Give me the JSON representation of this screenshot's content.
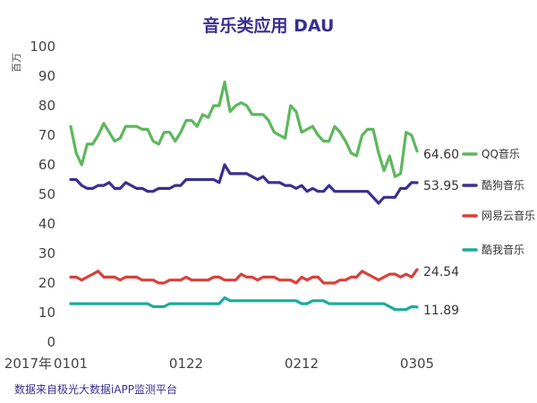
{
  "chart_data": {
    "type": "line",
    "title": "音乐类应用 DAU",
    "ylabel": "百万",
    "ylim": [
      0,
      100
    ],
    "yticks": [
      0,
      10,
      20,
      30,
      40,
      50,
      60,
      70,
      80,
      90,
      100
    ],
    "x_start_prefix": "2017年",
    "x_tick_labels": [
      "0101",
      "0122",
      "0212",
      "0305"
    ],
    "x": [
      "0101",
      "0102",
      "0103",
      "0104",
      "0105",
      "0106",
      "0107",
      "0108",
      "0109",
      "0110",
      "0111",
      "0112",
      "0113",
      "0114",
      "0115",
      "0116",
      "0117",
      "0118",
      "0119",
      "0120",
      "0121",
      "0122",
      "0123",
      "0124",
      "0125",
      "0126",
      "0127",
      "0128",
      "0129",
      "0130",
      "0131",
      "0201",
      "0202",
      "0203",
      "0204",
      "0205",
      "0206",
      "0207",
      "0208",
      "0209",
      "0210",
      "0211",
      "0212",
      "0213",
      "0214",
      "0215",
      "0216",
      "0217",
      "0218",
      "0219",
      "0220",
      "0221",
      "0222",
      "0223",
      "0224",
      "0225",
      "0226",
      "0227",
      "0228",
      "0301",
      "0302",
      "0303",
      "0304",
      "0305"
    ],
    "series": [
      {
        "name": "QQ音乐",
        "color": "#5cb85c",
        "end_label": "64.60",
        "values": [
          73,
          64,
          60,
          67,
          67,
          70,
          74,
          71,
          68,
          69,
          73,
          73,
          73,
          72,
          72,
          68,
          67,
          71,
          71,
          68,
          71,
          75,
          75,
          73,
          77,
          76,
          80,
          80,
          88,
          78,
          80,
          81,
          80,
          77,
          77,
          77,
          75,
          71,
          70,
          69,
          80,
          78,
          71,
          72,
          73,
          70,
          68,
          68,
          73,
          71,
          68,
          64,
          63,
          70,
          72,
          72,
          64,
          58,
          63,
          56,
          57,
          71,
          70,
          64.6
        ]
      },
      {
        "name": "酷狗音乐",
        "color": "#3a2f8f",
        "end_label": "53.95",
        "values": [
          55,
          55,
          53,
          52,
          52,
          53,
          53,
          54,
          52,
          52,
          54,
          53,
          52,
          52,
          51,
          51,
          52,
          52,
          52,
          53,
          53,
          55,
          55,
          55,
          55,
          55,
          55,
          54,
          60,
          57,
          57,
          57,
          57,
          56,
          55,
          56,
          54,
          54,
          54,
          53,
          53,
          52,
          53,
          51,
          52,
          51,
          51,
          53,
          51,
          51,
          51,
          51,
          51,
          51,
          51,
          49,
          47,
          49,
          49,
          49,
          52,
          52,
          54,
          53.95
        ]
      },
      {
        "name": "网易云音乐",
        "color": "#d9403a",
        "end_label": "24.54",
        "values": [
          22,
          22,
          21,
          22,
          23,
          24,
          22,
          22,
          22,
          21,
          22,
          22,
          22,
          21,
          21,
          21,
          20,
          20,
          21,
          21,
          21,
          22,
          21,
          21,
          21,
          21,
          22,
          22,
          21,
          21,
          21,
          23,
          22,
          22,
          21,
          22,
          22,
          22,
          21,
          21,
          21,
          20,
          22,
          21,
          22,
          22,
          20,
          20,
          20,
          21,
          21,
          22,
          22,
          24,
          23,
          22,
          21,
          22,
          23,
          23,
          22,
          23,
          22,
          24.54
        ]
      },
      {
        "name": "酷我音乐",
        "color": "#1aab9c",
        "end_label": "11.89",
        "values": [
          13,
          13,
          13,
          13,
          13,
          13,
          13,
          13,
          13,
          13,
          13,
          13,
          13,
          13,
          13,
          12,
          12,
          12,
          13,
          13,
          13,
          13,
          13,
          13,
          13,
          13,
          13,
          13,
          15,
          14,
          14,
          14,
          14,
          14,
          14,
          14,
          14,
          14,
          14,
          14,
          14,
          14,
          13,
          13,
          14,
          14,
          14,
          13,
          13,
          13,
          13,
          13,
          13,
          13,
          13,
          13,
          13,
          13,
          12,
          11,
          11,
          11,
          12,
          11.89
        ]
      }
    ]
  },
  "footer": {
    "source": "数据来自极光大数据iAPP监测平台"
  }
}
